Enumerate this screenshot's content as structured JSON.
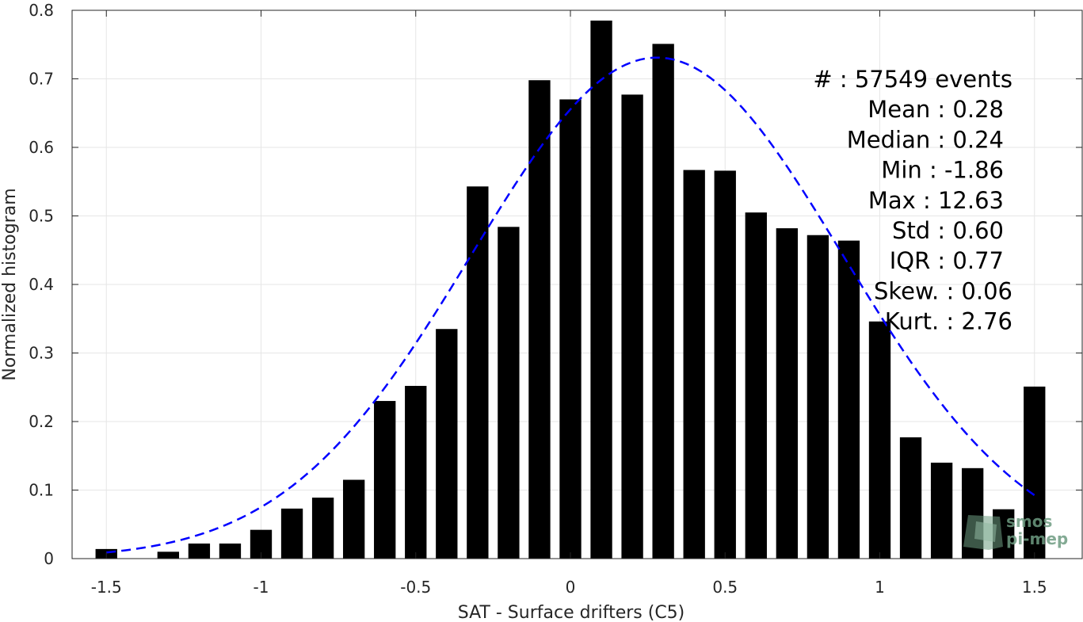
{
  "chart_data": {
    "type": "bar",
    "xlabel": "SAT - Surface drifters (C5)",
    "ylabel": "Normalized histogram",
    "xlim": [
      -1.62,
      1.62
    ],
    "ylim": [
      0,
      0.8
    ],
    "xticks": [
      -1.5,
      -1,
      -0.5,
      0,
      0.5,
      1,
      1.5
    ],
    "xtick_labels": [
      "-1.5",
      "-1",
      "-0.5",
      "0",
      "0.5",
      "1",
      "1.5"
    ],
    "yticks": [
      0,
      0.1,
      0.2,
      0.3,
      0.4,
      0.5,
      0.6,
      0.7,
      0.8
    ],
    "ytick_labels": [
      "0",
      "0.1",
      "0.2",
      "0.3",
      "0.4",
      "0.5",
      "0.6",
      "0.7",
      "0.8"
    ],
    "grid": true,
    "bars": {
      "x": [
        -1.5,
        -1.4,
        -1.3,
        -1.2,
        -1.1,
        -1.0,
        -0.9,
        -0.8,
        -0.7,
        -0.6,
        -0.5,
        -0.4,
        -0.3,
        -0.2,
        -0.1,
        0.0,
        0.1,
        0.2,
        0.3,
        0.4,
        0.5,
        0.6,
        0.7,
        0.8,
        0.9,
        1.0,
        1.1,
        1.2,
        1.3,
        1.4,
        1.5
      ],
      "values": [
        0.014,
        0.0,
        0.01,
        0.022,
        0.022,
        0.042,
        0.073,
        0.089,
        0.115,
        0.23,
        0.252,
        0.335,
        0.543,
        0.484,
        0.698,
        0.67,
        0.785,
        0.677,
        0.751,
        0.567,
        0.566,
        0.505,
        0.482,
        0.472,
        0.464,
        0.346,
        0.177,
        0.14,
        0.132,
        0.072,
        0.251
      ],
      "color": "#000000"
    },
    "fit_curve": {
      "type": "gaussian",
      "mean": 0.28,
      "std": 0.6,
      "peak": 0.731,
      "x_range": [
        -1.5,
        1.5
      ],
      "style": "dashed",
      "color": "#0000ff"
    },
    "stats": [
      "#  : 57549 events",
      "Mean : 0.28",
      "Median : 0.24",
      "Min : -1.86",
      "Max : 12.63",
      "Std : 0.60",
      "IQR : 0.77",
      "Skew. : 0.06",
      "Kurt. : 2.76"
    ]
  },
  "watermark": {
    "line1": "smos",
    "line2": "pi-mep"
  }
}
